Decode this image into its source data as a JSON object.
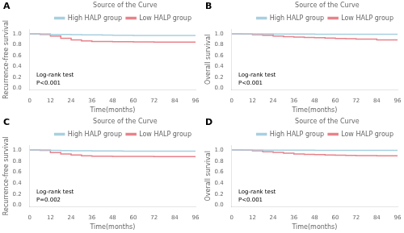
{
  "chart_data": [
    {
      "type": "step",
      "title": "A",
      "xlabel": "Time(months)",
      "ylabel": "Recurrence-free survival",
      "annotation": "Log-rank test\nP<0.001",
      "legend_title": "Source of the Curve",
      "legend": "upper right",
      "grid": false,
      "xlim": [
        0,
        96
      ],
      "xticks": [
        0,
        12,
        24,
        36,
        48,
        60,
        72,
        84,
        96
      ],
      "ylim": [
        -0.02,
        1.08
      ],
      "yticks": [
        {
          "value": 0,
          "label": "0.0"
        },
        0.2,
        0.4,
        0.6,
        0.8,
        {
          "value": 1,
          "label": "1.0"
        }
      ],
      "x": [
        0,
        6,
        12,
        18,
        24,
        30,
        36,
        42,
        48,
        54,
        60,
        66,
        72,
        84,
        96
      ],
      "series": [
        {
          "name": "High HALP group",
          "color": "#a8cfe0",
          "values": [
            1.0,
            1.0,
            0.99,
            0.99,
            0.985,
            0.983,
            0.98,
            0.978,
            0.975,
            0.973,
            0.972,
            0.972,
            0.972,
            0.972,
            0.97
          ]
        },
        {
          "name": "Low HALP group",
          "color": "#e8828a",
          "values": [
            1.0,
            0.99,
            0.96,
            0.92,
            0.89,
            0.87,
            0.86,
            0.86,
            0.856,
            0.855,
            0.854,
            0.852,
            0.85,
            0.848,
            0.845
          ]
        }
      ]
    },
    {
      "type": "step",
      "title": "B",
      "xlabel": "Time(months)",
      "ylabel": "Overall survival",
      "annotation": "Log-rank test\nP<0.001",
      "legend_title": "Source of the Curve",
      "legend": "upper right",
      "grid": false,
      "xlim": [
        0,
        96
      ],
      "xticks": [
        0,
        12,
        24,
        36,
        48,
        60,
        72,
        84,
        96
      ],
      "ylim": [
        -0.02,
        1.08
      ],
      "yticks": [
        {
          "value": 0,
          "label": "0.0"
        },
        0.2,
        0.4,
        0.6,
        0.8,
        {
          "value": 1,
          "label": "1.0"
        }
      ],
      "x": [
        0,
        6,
        12,
        18,
        24,
        30,
        36,
        42,
        48,
        54,
        60,
        66,
        72,
        84,
        96
      ],
      "series": [
        {
          "name": "High HALP group",
          "color": "#a8cfe0",
          "values": [
            1.0,
            1.0,
            1.0,
            1.0,
            0.998,
            0.997,
            0.996,
            0.995,
            0.994,
            0.993,
            0.993,
            0.993,
            0.992,
            0.992,
            0.991
          ]
        },
        {
          "name": "Low HALP group",
          "color": "#e8828a",
          "values": [
            1.0,
            0.995,
            0.985,
            0.975,
            0.96,
            0.95,
            0.942,
            0.935,
            0.93,
            0.922,
            0.916,
            0.91,
            0.905,
            0.89,
            0.885
          ]
        }
      ]
    },
    {
      "type": "step",
      "title": "C",
      "xlabel": "Time(months)",
      "ylabel": "Recurrence-free survival",
      "annotation": "Log-rank test\nP=0.002",
      "legend_title": "Source of the Curve",
      "legend": "upper right",
      "grid": false,
      "xlim": [
        0,
        96
      ],
      "xticks": [
        0,
        12,
        24,
        36,
        48,
        60,
        72,
        84,
        96
      ],
      "ylim": [
        -0.02,
        1.08
      ],
      "yticks": [
        {
          "value": 0,
          "label": "0.0"
        },
        0.2,
        0.4,
        0.6,
        0.8,
        {
          "value": 1,
          "label": "1.0"
        }
      ],
      "x": [
        0,
        6,
        12,
        18,
        24,
        30,
        36,
        42,
        48,
        54,
        60,
        66,
        72,
        84,
        96
      ],
      "series": [
        {
          "name": "High HALP group",
          "color": "#a8cfe0",
          "values": [
            1.0,
            1.0,
            0.995,
            0.992,
            0.988,
            0.986,
            0.984,
            0.983,
            0.982,
            0.981,
            0.98,
            0.979,
            0.979,
            0.979,
            0.978
          ]
        },
        {
          "name": "Low HALP group",
          "color": "#e8828a",
          "values": [
            1.0,
            0.995,
            0.955,
            0.93,
            0.91,
            0.895,
            0.888,
            0.887,
            0.886,
            0.885,
            0.884,
            0.883,
            0.882,
            0.881,
            0.88
          ]
        }
      ]
    },
    {
      "type": "step",
      "title": "D",
      "xlabel": "Time(months)",
      "ylabel": "Overall survival",
      "annotation": "Log-rank test\nP<0.001",
      "legend_title": "Source of the Curve",
      "legend": "upper right",
      "grid": false,
      "xlim": [
        0,
        96
      ],
      "xticks": [
        0,
        12,
        24,
        36,
        48,
        60,
        72,
        84,
        96
      ],
      "ylim": [
        -0.02,
        1.08
      ],
      "yticks": [
        {
          "value": 0,
          "label": "0.0"
        },
        0.2,
        0.4,
        0.6,
        0.8,
        {
          "value": 1,
          "label": "1.0"
        }
      ],
      "x": [
        0,
        6,
        12,
        18,
        24,
        30,
        36,
        42,
        48,
        54,
        60,
        66,
        72,
        84,
        96
      ],
      "series": [
        {
          "name": "High HALP group",
          "color": "#a8cfe0",
          "values": [
            1.0,
            1.0,
            1.0,
            0.999,
            0.998,
            0.997,
            0.996,
            0.996,
            0.995,
            0.995,
            0.994,
            0.994,
            0.994,
            0.993,
            0.992
          ]
        },
        {
          "name": "Low HALP group",
          "color": "#e8828a",
          "values": [
            1.0,
            0.998,
            0.985,
            0.97,
            0.958,
            0.942,
            0.93,
            0.922,
            0.916,
            0.91,
            0.906,
            0.902,
            0.9,
            0.896,
            0.892
          ]
        }
      ]
    }
  ]
}
